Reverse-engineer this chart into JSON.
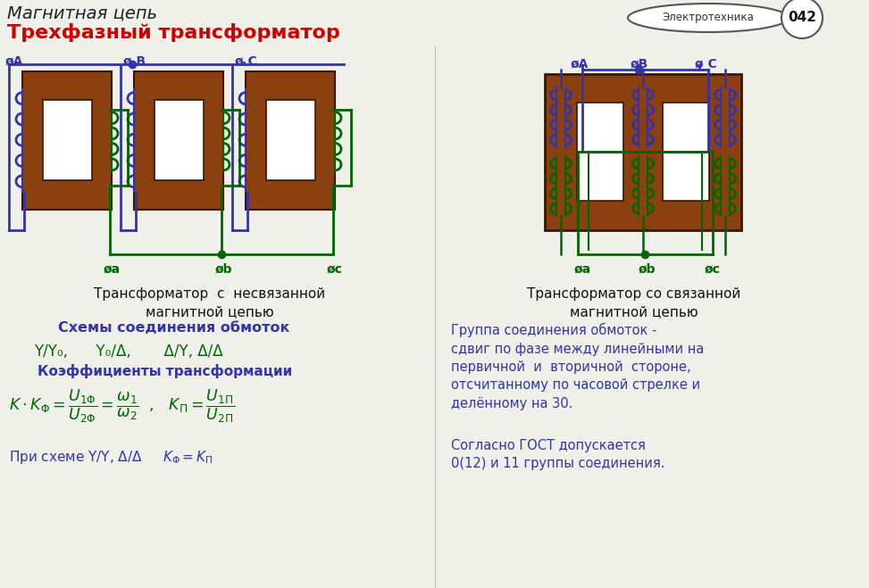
{
  "title_line1": "Магнитная цепь",
  "title_line2": "Трехфазный трансформатор",
  "title_line1_color": "#222222",
  "title_line2_color": "#cc0000",
  "badge_text1": "Электротехника",
  "badge_text2": "042",
  "left_diagram_title": "Трансформатор  с  несвязанной\nмагнитной цепью",
  "right_diagram_title": "Трансформатор со связанной\nмагнитной цепью",
  "section_header1": "Схемы соединения обмоток",
  "connections_text": "Y/Y₀,      Y₀/Δ,       Δ/Y, Δ/Δ",
  "section_header2": "Коэффициенты трансформации",
  "group_header": "Группа соединения обмоток -\nсдвиг по фазе между линейными на\nпервичной  и  вторичной  стороне,\nотсчитанному по часовой стрелке и\nделённому на 30.",
  "gost_text": "Согласно ГОСТ допускается\n0(12) и 11 группы соединения.",
  "primary_color": "#3333aa",
  "secondary_color": "#006600",
  "core_color": "#8B4010",
  "bg_color": "#f0f0ea",
  "header_color": "#3333aa",
  "text_color": "#111111"
}
